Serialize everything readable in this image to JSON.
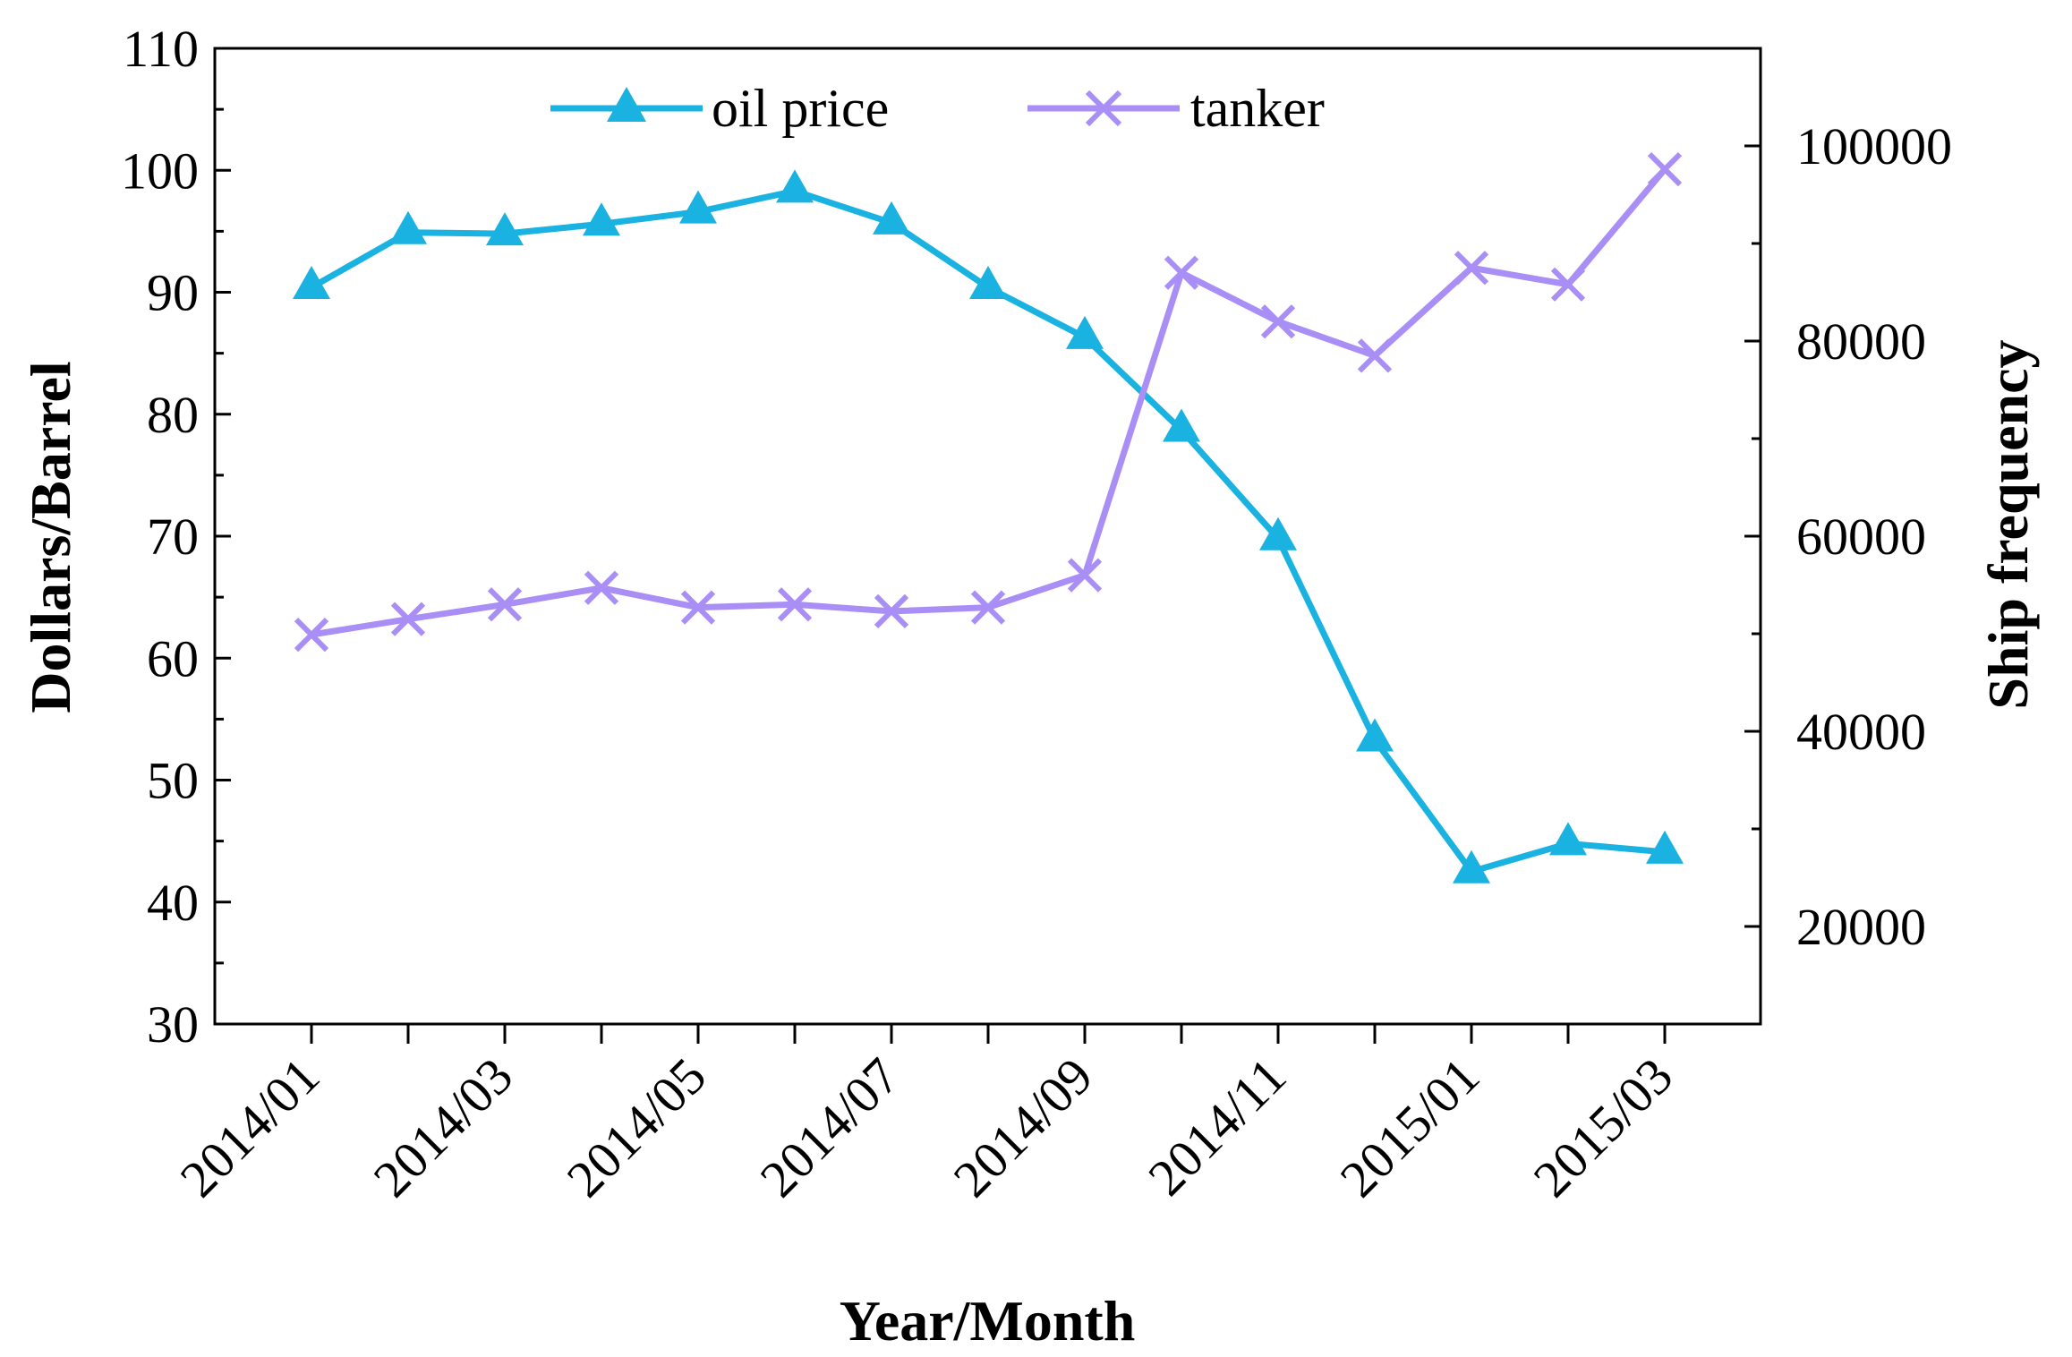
{
  "chart_data": {
    "type": "line",
    "xlabel": "Year/Month",
    "ylabel_left": "Dollars/Barrel",
    "ylabel_right": "Ship frequency",
    "categories": [
      "2014/01",
      "2014/02",
      "2014/03",
      "2014/04",
      "2014/05",
      "2014/06",
      "2014/07",
      "2014/08",
      "2014/09",
      "2014/10",
      "2014/11",
      "2014/12",
      "2015/01",
      "2015/02",
      "2015/03"
    ],
    "x_tick_labels": [
      "2014/01",
      "2014/03",
      "2014/05",
      "2014/07",
      "2014/09",
      "2014/11",
      "2015/01",
      "2015/03"
    ],
    "ylim_left": [
      30,
      110
    ],
    "yticks_left": [
      30,
      40,
      50,
      60,
      70,
      80,
      90,
      100,
      110
    ],
    "ylim_right": [
      10000,
      110000
    ],
    "yticks_right": [
      20000,
      40000,
      60000,
      80000,
      100000
    ],
    "series": [
      {
        "name": "oil price",
        "axis": "left",
        "marker": "triangle",
        "color": "#1ab2e0",
        "values": [
          90.4,
          94.9,
          94.8,
          95.6,
          96.6,
          98.3,
          95.7,
          90.4,
          86.3,
          78.7,
          69.8,
          53.3,
          42.5,
          44.8,
          44.1
        ]
      },
      {
        "name": "tanker",
        "axis": "right",
        "marker": "x",
        "color": "#a98ef5",
        "values": [
          49900,
          51500,
          53000,
          54700,
          52700,
          53000,
          52300,
          52700,
          56000,
          87000,
          82000,
          78500,
          87500,
          85800,
          97600
        ]
      }
    ]
  }
}
